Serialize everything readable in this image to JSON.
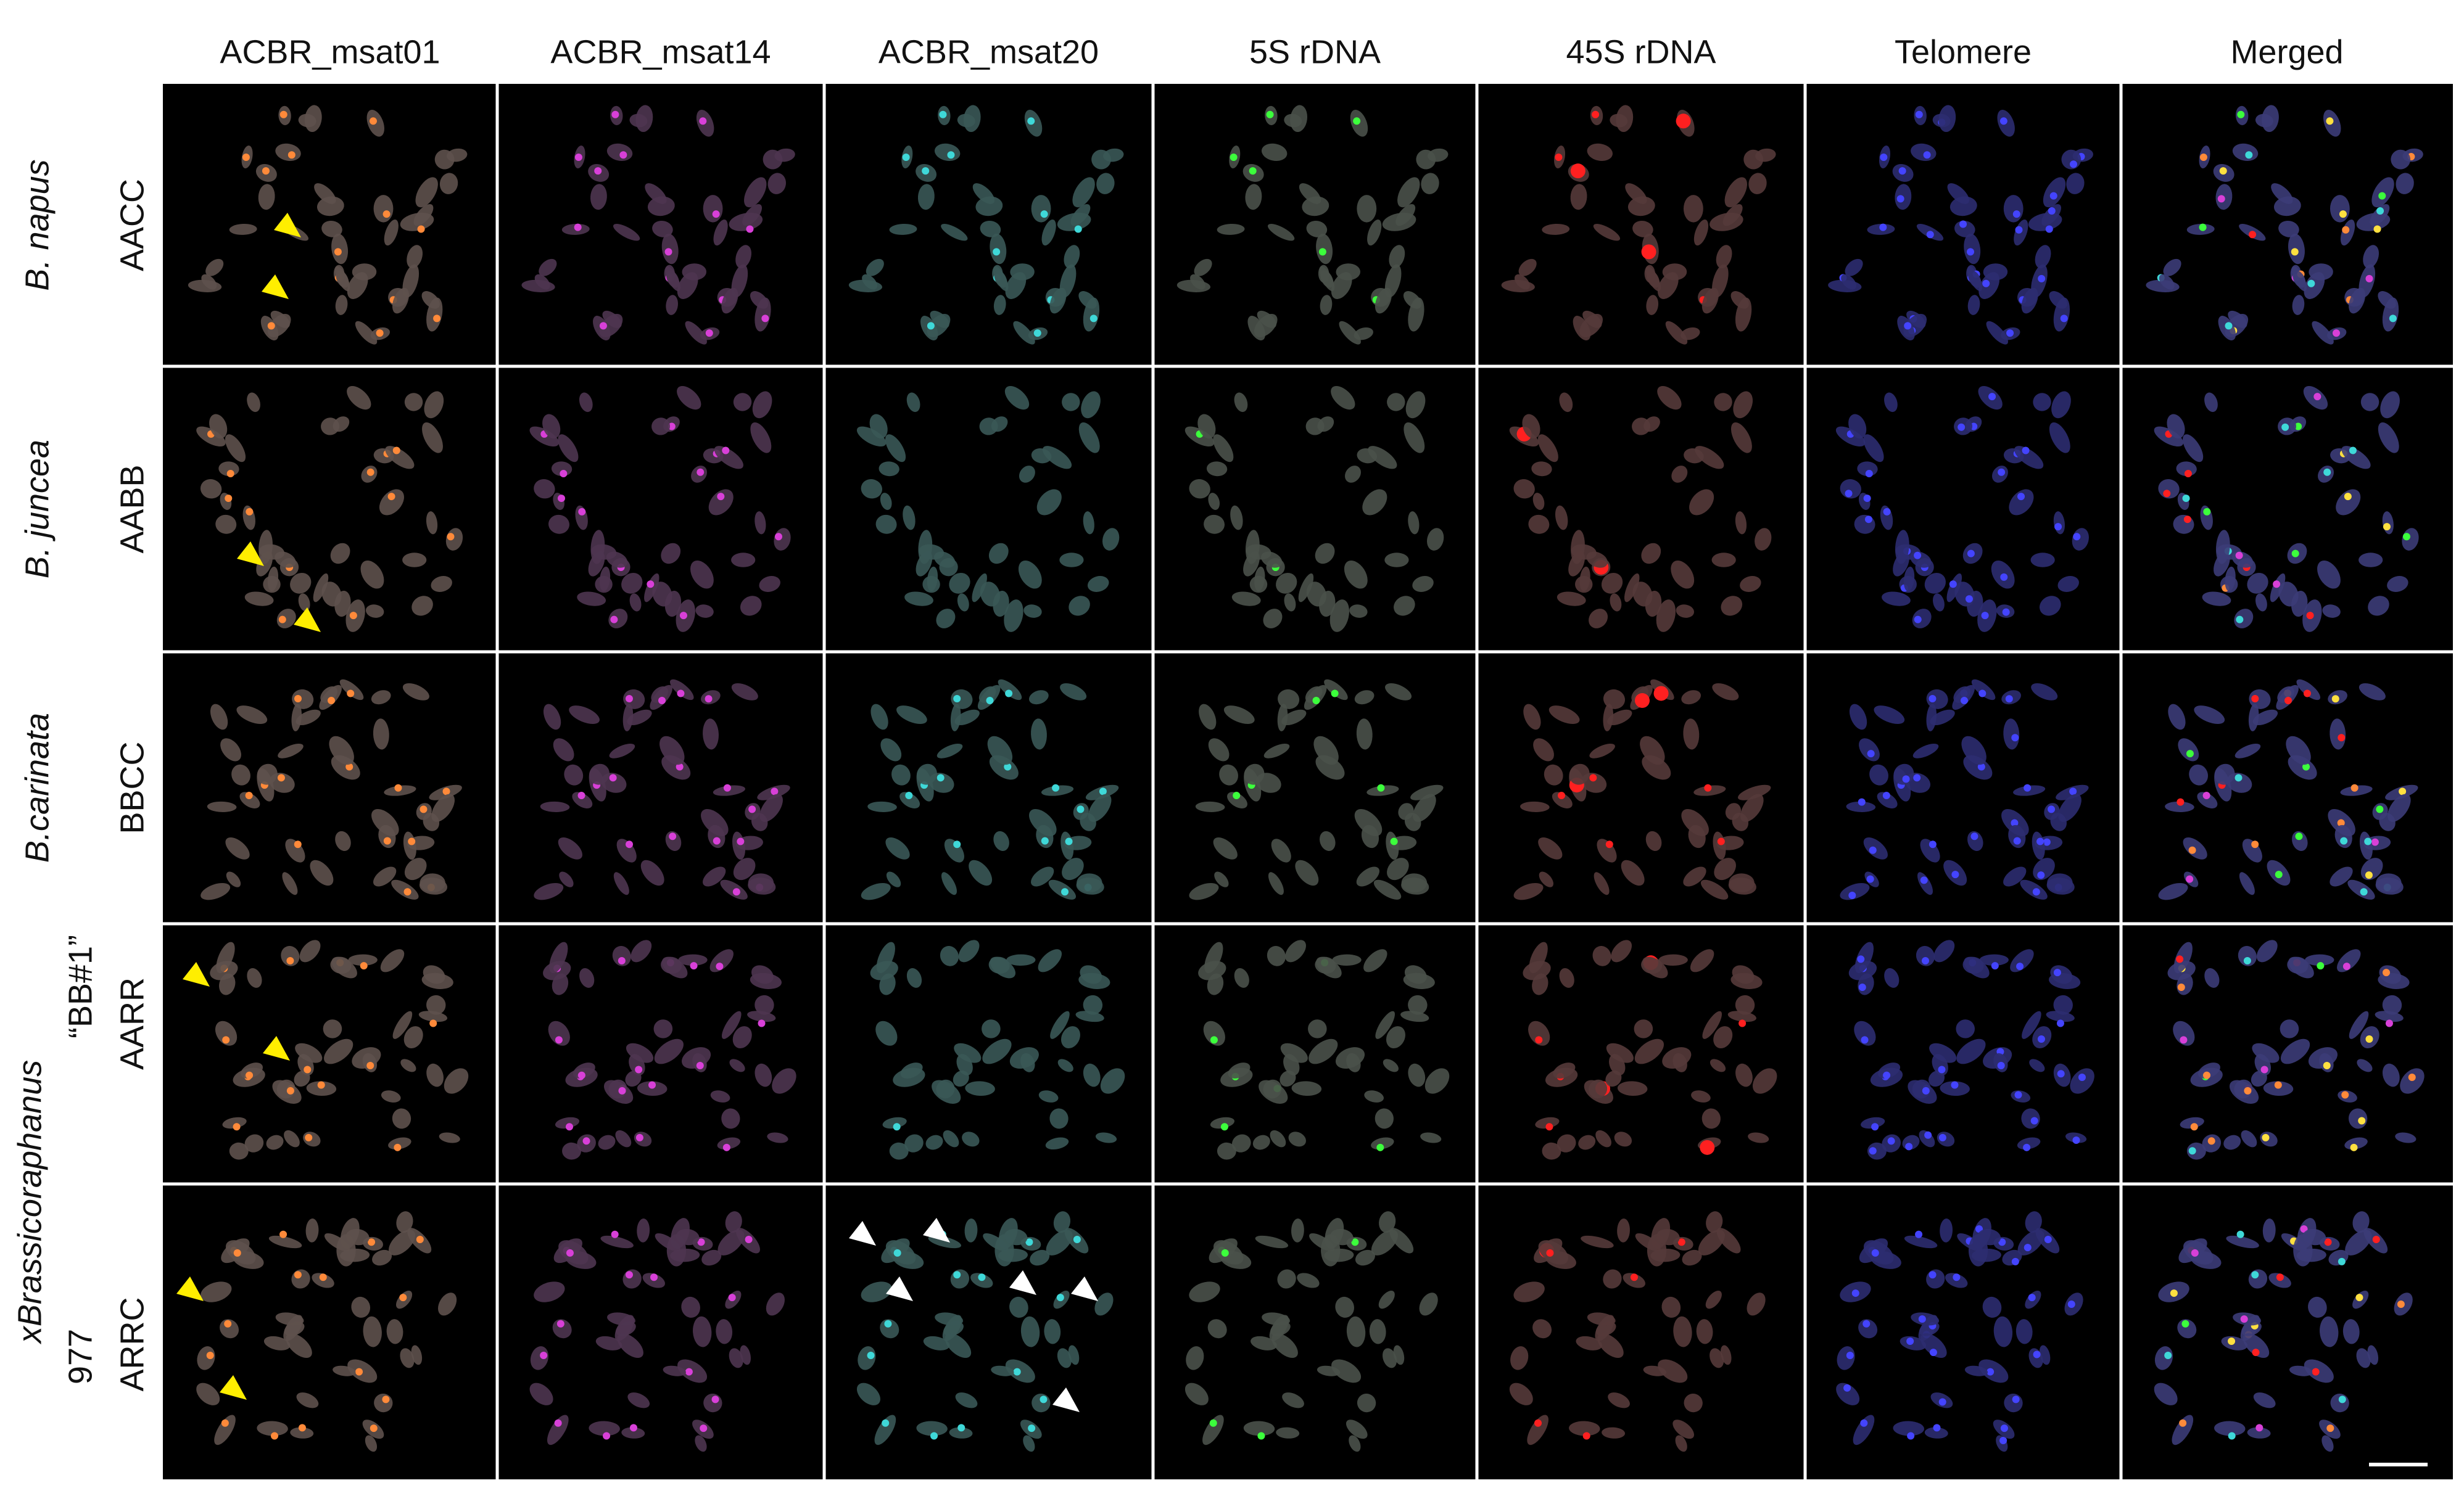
{
  "header": {
    "columns": [
      "ACBR_msat01",
      "ACBR_msat14",
      "ACBR_msat20",
      "5S rDNA",
      "45S rDNA",
      "Telomere",
      "Merged"
    ]
  },
  "rows": [
    {
      "species": "B. napus",
      "genome": "AACC"
    },
    {
      "species": "B. juncea",
      "genome": "AABB"
    },
    {
      "species": "B.carinata",
      "genome": "BBCC"
    },
    {
      "line": "“BB#1”",
      "genome": "AARR"
    },
    {
      "line": "977",
      "genome": "ARRC"
    }
  ],
  "group": {
    "species": "xBrassicoraphanus"
  }
}
